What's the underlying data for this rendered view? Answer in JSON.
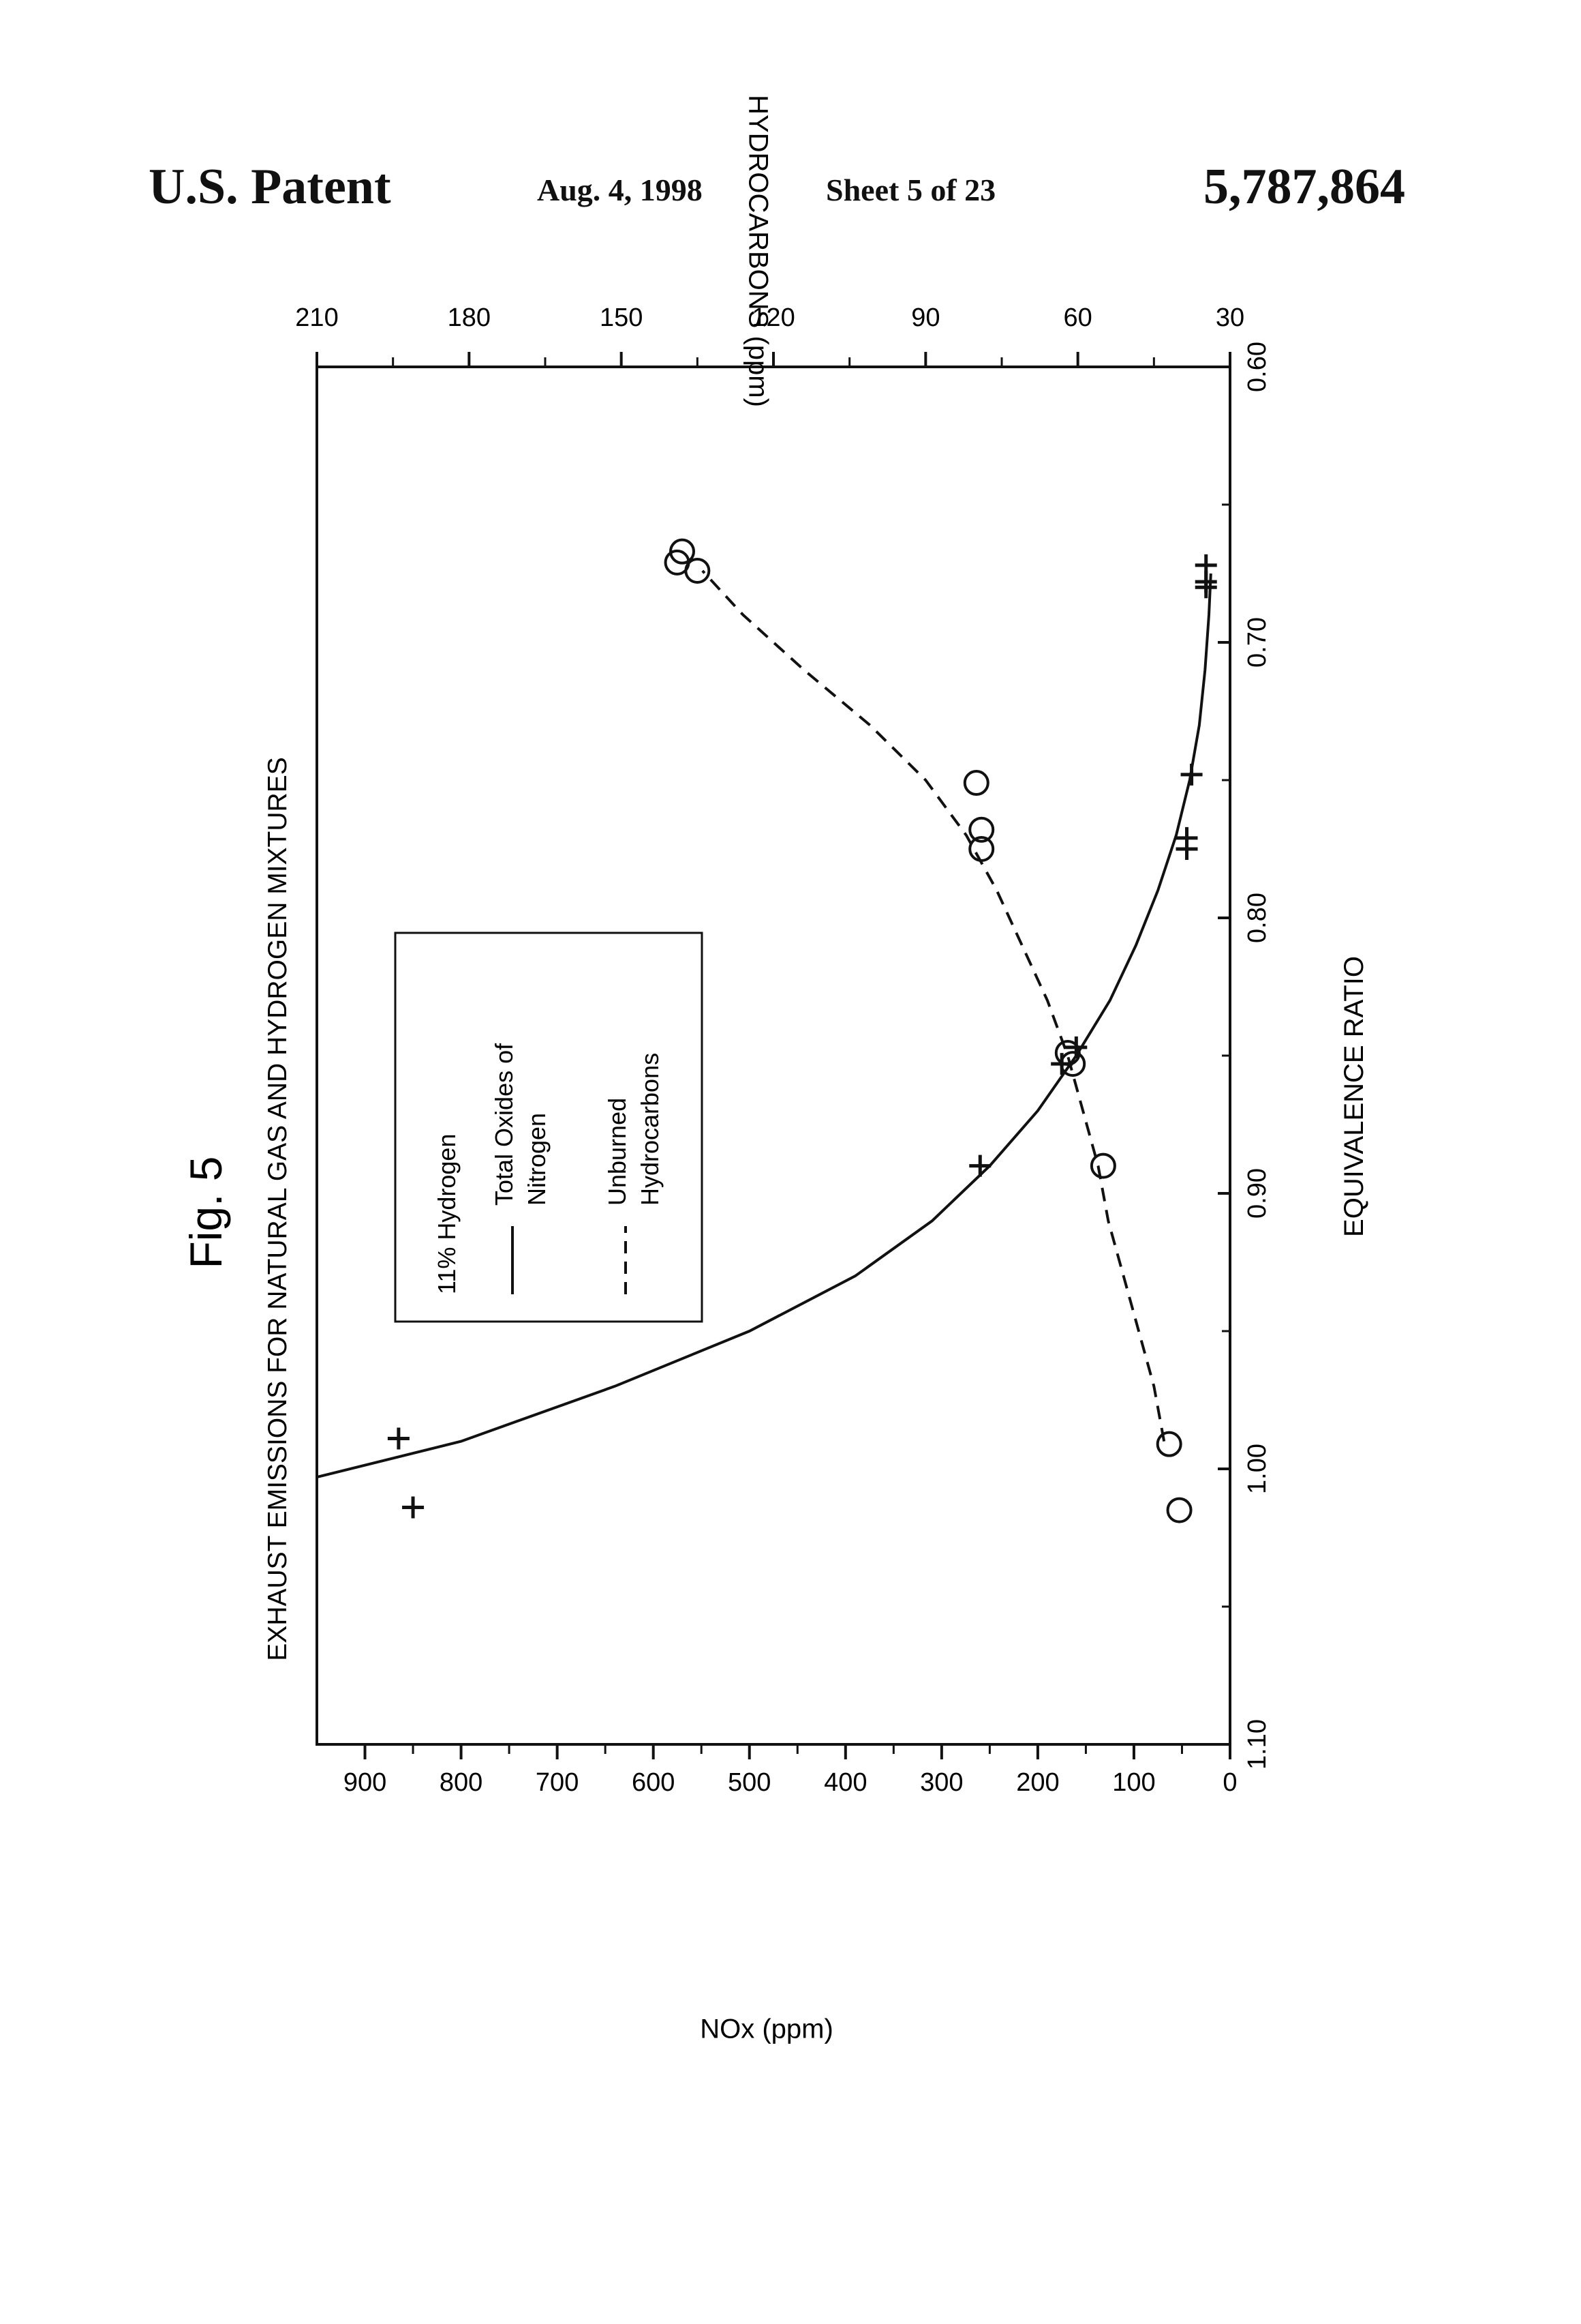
{
  "header": {
    "left": "U.S. Patent",
    "date": "Aug. 4, 1998",
    "sheet": "Sheet 5 of 23",
    "patent_number": "5,787,864"
  },
  "figure_label": "Fig. 5",
  "chart_data": {
    "type": "scatter",
    "orientation": "rotated 90° counter-clockwise on the page",
    "title": "EXHAUST EMISSIONS FOR NATURAL GAS AND HYDROGEN MIXTURES",
    "xlabel": "EQUIVALENCE RATIO",
    "xlim": [
      1.1,
      0.6
    ],
    "x_ticks": [
      "1.10",
      "1.00",
      "0.90",
      "0.80",
      "0.70",
      "0.60"
    ],
    "ylabel_left": "NOx (ppm)",
    "ylim_left": [
      0,
      950
    ],
    "y_ticks_left": [
      "900",
      "800",
      "700",
      "600",
      "500",
      "400",
      "300",
      "200",
      "100",
      "0"
    ],
    "ylabel_right": "HYDROCARBONS (ppm)",
    "ylim_right": [
      30,
      210
    ],
    "y_ticks_right": [
      "210",
      "180",
      "150",
      "120",
      "90",
      "60",
      "30"
    ],
    "legend": {
      "title": "11% Hydrogen",
      "entries": [
        {
          "label": "Total Oxides of Nitrogen",
          "lines": [
            "Total Oxides of",
            "Nitrogen"
          ],
          "style": "solid"
        },
        {
          "label": "Unburned Hydrocarbons",
          "lines": [
            "Unburned",
            "Hydrocarbons"
          ],
          "style": "dashed"
        }
      ]
    },
    "series": [
      {
        "name": "Total Oxides of Nitrogen",
        "axis": "left",
        "marker": "plus",
        "points": [
          [
            1.014,
            850
          ],
          [
            0.989,
            865
          ],
          [
            0.89,
            260
          ],
          [
            0.853,
            175
          ],
          [
            0.847,
            160
          ],
          [
            0.775,
            45
          ],
          [
            0.771,
            45
          ],
          [
            0.748,
            40
          ],
          [
            0.68,
            25
          ],
          [
            0.678,
            25
          ],
          [
            0.672,
            25
          ]
        ],
        "fit": [
          [
            1.003,
            950
          ],
          [
            0.99,
            800
          ],
          [
            0.97,
            640
          ],
          [
            0.95,
            500
          ],
          [
            0.93,
            390
          ],
          [
            0.91,
            310
          ],
          [
            0.89,
            250
          ],
          [
            0.87,
            200
          ],
          [
            0.85,
            160
          ],
          [
            0.83,
            125
          ],
          [
            0.81,
            98
          ],
          [
            0.79,
            75
          ],
          [
            0.77,
            56
          ],
          [
            0.75,
            42
          ],
          [
            0.73,
            32
          ],
          [
            0.71,
            26
          ],
          [
            0.69,
            22
          ],
          [
            0.675,
            20
          ]
        ]
      },
      {
        "name": "Unburned Hydrocarbons",
        "axis": "right",
        "marker": "circle",
        "points": [
          [
            1.015,
            40
          ],
          [
            0.991,
            42
          ],
          [
            0.89,
            55
          ],
          [
            0.853,
            61
          ],
          [
            0.849,
            62
          ],
          [
            0.775,
            79
          ],
          [
            0.768,
            79
          ],
          [
            0.751,
            80
          ],
          [
            0.674,
            135
          ],
          [
            0.667,
            138
          ],
          [
            0.671,
            139
          ]
        ],
        "fit": [
          [
            0.99,
            43
          ],
          [
            0.97,
            45
          ],
          [
            0.95,
            48
          ],
          [
            0.93,
            51
          ],
          [
            0.91,
            54
          ],
          [
            0.89,
            56
          ],
          [
            0.87,
            59
          ],
          [
            0.85,
            62
          ],
          [
            0.83,
            66
          ],
          [
            0.81,
            71
          ],
          [
            0.79,
            76
          ],
          [
            0.77,
            82
          ],
          [
            0.75,
            90
          ],
          [
            0.73,
            101
          ],
          [
            0.71,
            114
          ],
          [
            0.69,
            126
          ],
          [
            0.674,
            134
          ]
        ]
      }
    ]
  }
}
